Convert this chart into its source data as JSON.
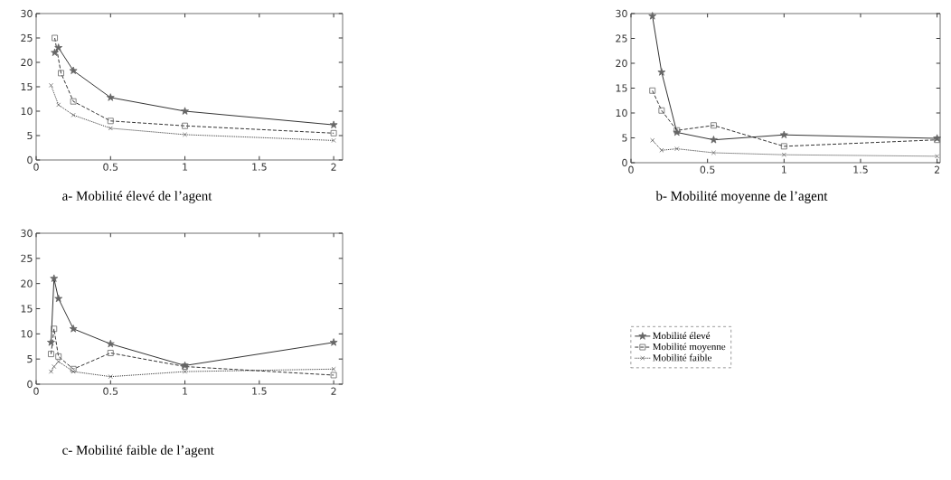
{
  "chart_data": [
    {
      "type": "line",
      "title": "a- Mobilité élevé de l’agent",
      "xlim": [
        0,
        2.06
      ],
      "ylim": [
        0,
        30
      ],
      "xticks": [
        0,
        0.5,
        1,
        1.5,
        2
      ],
      "yticks": [
        0,
        5,
        10,
        15,
        20,
        25,
        30
      ],
      "grid": false,
      "legend": false,
      "series": [
        {
          "color": "#000000",
          "marker": "star",
          "line_style": "solid",
          "x": [
            0.125,
            0.15,
            0.25,
            0.5,
            1,
            2
          ],
          "values": [
            22,
            23,
            18.3,
            12.8,
            10,
            7.2
          ]
        },
        {
          "color": "#000000",
          "marker": "square",
          "line_style": "dashed",
          "x": [
            0.125,
            0.167,
            0.25,
            0.5,
            1,
            2
          ],
          "values": [
            25,
            17.8,
            12,
            8,
            7,
            5.5
          ]
        },
        {
          "color": "#000000",
          "marker": "cross",
          "line_style": "dotted",
          "x": [
            0.1,
            0.15,
            0.25,
            0.5,
            1,
            2
          ],
          "values": [
            15.3,
            11.3,
            9.2,
            6.5,
            5.2,
            4
          ]
        }
      ]
    },
    {
      "type": "line",
      "title": "b- Mobilité moyenne de l’agent",
      "xlim": [
        0,
        2.02
      ],
      "ylim": [
        0,
        30
      ],
      "xticks": [
        0,
        0.5,
        1,
        1.5,
        2
      ],
      "yticks": [
        0,
        5,
        10,
        15,
        20,
        25,
        30
      ],
      "grid": false,
      "legend": false,
      "series": [
        {
          "color": "#000000",
          "marker": "star",
          "line_style": "solid",
          "x": [
            0.14,
            0.2,
            0.3,
            0.54,
            1,
            2
          ],
          "values": [
            29.5,
            18.2,
            6.1,
            4.6,
            5.6,
            4.9
          ]
        },
        {
          "color": "#000000",
          "marker": "square",
          "line_style": "dashed",
          "x": [
            0.14,
            0.2,
            0.3,
            0.54,
            1,
            2
          ],
          "values": [
            14.5,
            10.5,
            6.5,
            7.5,
            3.3,
            4.6
          ]
        },
        {
          "color": "#000000",
          "marker": "cross",
          "line_style": "dotted",
          "x": [
            0.14,
            0.2,
            0.3,
            0.54,
            1,
            2
          ],
          "values": [
            4.5,
            2.5,
            2.8,
            2,
            1.6,
            1.3
          ]
        }
      ]
    },
    {
      "type": "line",
      "title": "c- Mobilité faible de l’agent",
      "xlim": [
        0,
        2.06
      ],
      "ylim": [
        0,
        30
      ],
      "xticks": [
        0,
        0.5,
        1,
        1.5,
        2
      ],
      "yticks": [
        0,
        5,
        10,
        15,
        20,
        25,
        30
      ],
      "grid": false,
      "legend": "right",
      "series": [
        {
          "name": "Mobilité élevé",
          "color": "#000000",
          "marker": "star",
          "line_style": "solid",
          "x": [
            0.1,
            0.12,
            0.15,
            0.25,
            0.5,
            1,
            2
          ],
          "values": [
            8.3,
            21,
            17,
            11,
            8,
            3.7,
            8.3
          ]
        },
        {
          "name": "Mobilité moyenne",
          "color": "#000000",
          "marker": "square",
          "line_style": "dashed",
          "x": [
            0.1,
            0.12,
            0.15,
            0.25,
            0.5,
            1,
            2
          ],
          "values": [
            6,
            11,
            5.5,
            3,
            6.2,
            3.5,
            1.8
          ]
        },
        {
          "name": "Mobilité faible",
          "color": "#000000",
          "marker": "cross",
          "line_style": "dotted",
          "x": [
            0.1,
            0.12,
            0.15,
            0.25,
            0.5,
            1,
            2
          ],
          "values": [
            2.5,
            3.5,
            4.5,
            2.5,
            1.5,
            2.5,
            3
          ]
        }
      ]
    }
  ]
}
